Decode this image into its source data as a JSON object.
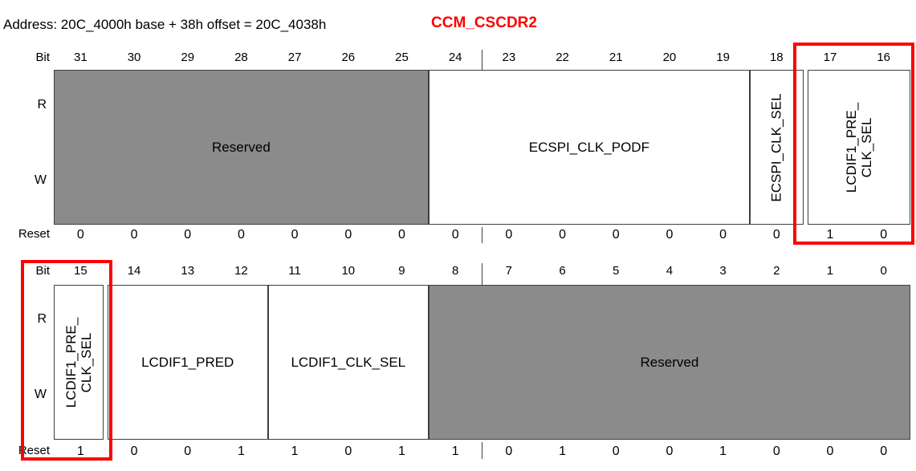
{
  "header": {
    "address_line": "Address: 20C_4000h base + 38h offset = 20C_4038h",
    "register_name": "CCM_CSCDR2"
  },
  "labels": {
    "bit": "Bit",
    "reset": "Reset",
    "read": "R",
    "write": "W"
  },
  "colors": {
    "accent_red": "#ff0000",
    "reserved_gray": "#8b8b8b",
    "line": "#3f3f3f"
  },
  "register_high": {
    "bits": [
      "31",
      "30",
      "29",
      "28",
      "27",
      "26",
      "25",
      "24",
      "23",
      "22",
      "21",
      "20",
      "19",
      "18",
      "17",
      "16"
    ],
    "fields": [
      {
        "name": "field-reserved-high",
        "label": "Reserved",
        "bits": "31-25",
        "start": 0,
        "span": 7,
        "reserved": true,
        "orientation": "horizontal",
        "gap": "none"
      },
      {
        "name": "field-ecspi-clk-podf",
        "label": "ECSPI_CLK_PODF",
        "bits": "24-19",
        "start": 7,
        "span": 6,
        "reserved": false,
        "orientation": "horizontal",
        "gap": "none"
      },
      {
        "name": "field-ecspi-clk-sel",
        "label": "ECSPI_CLK_SEL",
        "bits": "18",
        "start": 13,
        "span": 1,
        "reserved": false,
        "orientation": "vertical",
        "gap": "none"
      },
      {
        "name": "field-lcdif1-pre-clk-sel-high",
        "label": "LCDIF1_PRE_\nCLK_SEL",
        "bits": "17-16",
        "start": 14,
        "span": 2,
        "reserved": false,
        "orientation": "vertical",
        "gap": "left"
      }
    ],
    "reset_values": [
      "0",
      "0",
      "0",
      "0",
      "0",
      "0",
      "0",
      "0",
      "0",
      "0",
      "0",
      "0",
      "0",
      "0",
      "1",
      "0"
    ]
  },
  "register_low": {
    "bits": [
      "15",
      "14",
      "13",
      "12",
      "11",
      "10",
      "9",
      "8",
      "7",
      "6",
      "5",
      "4",
      "3",
      "2",
      "1",
      "0"
    ],
    "fields": [
      {
        "name": "field-lcdif1-pre-clk-sel-low",
        "label": "LCDIF1_PRE_\nCLK_SEL",
        "bits": "15",
        "start": 0,
        "span": 1,
        "reserved": false,
        "orientation": "vertical",
        "gap": "right"
      },
      {
        "name": "field-lcdif1-pred",
        "label": "LCDIF1_PRED",
        "bits": "14-12",
        "start": 1,
        "span": 3,
        "reserved": false,
        "orientation": "horizontal",
        "gap": "none"
      },
      {
        "name": "field-lcdif1-clk-sel",
        "label": "LCDIF1_CLK_SEL",
        "bits": "11-9",
        "start": 4,
        "span": 3,
        "reserved": false,
        "orientation": "horizontal",
        "gap": "none"
      },
      {
        "name": "field-reserved-low",
        "label": "Reserved",
        "bits": "8-0",
        "start": 7,
        "span": 9,
        "reserved": true,
        "orientation": "horizontal",
        "gap": "none"
      }
    ],
    "reset_values": [
      "1",
      "0",
      "0",
      "1",
      "1",
      "0",
      "1",
      "1",
      "0",
      "1",
      "0",
      "0",
      "1",
      "0",
      "0",
      "0"
    ]
  },
  "highlights": [
    {
      "name": "highlight-lcdif1-pre-clk-sel-high-bits"
    },
    {
      "name": "highlight-lcdif1-pre-clk-sel-low-bit"
    }
  ]
}
